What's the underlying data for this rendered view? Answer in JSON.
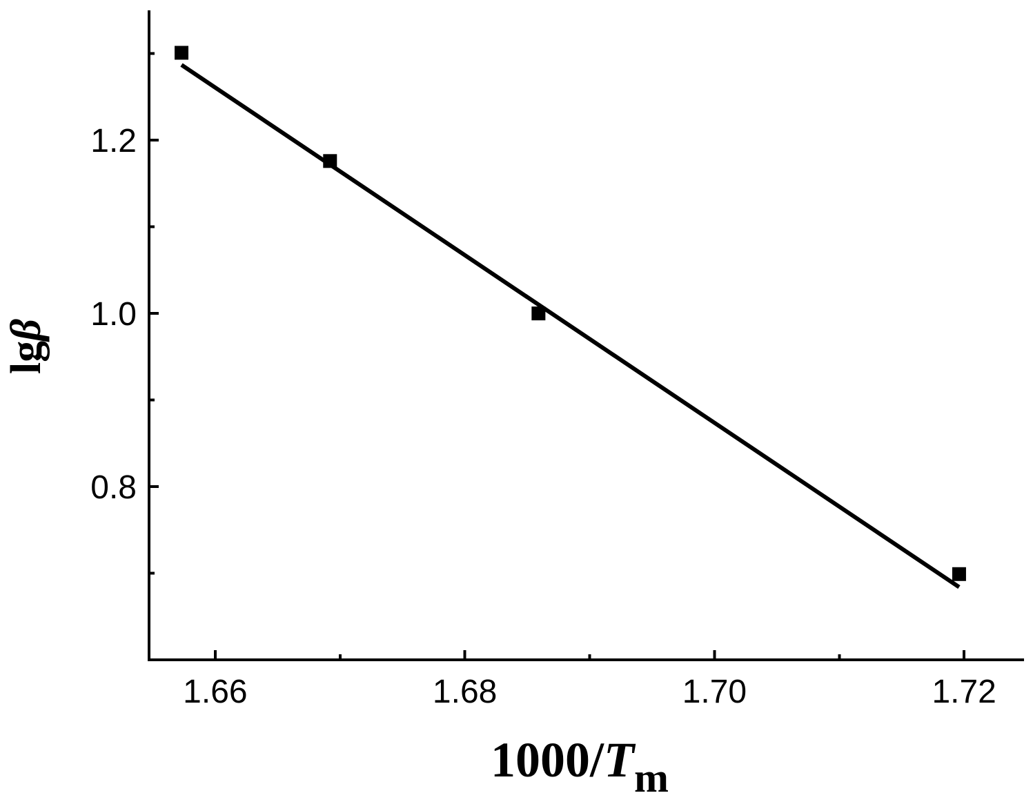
{
  "chart_data": {
    "type": "scatter",
    "xlabel": {
      "main": "1000/",
      "var": "T",
      "sub": "m"
    },
    "ylabel": {
      "main": "lg",
      "var": "β"
    },
    "xlim": [
      1.6547,
      1.7248
    ],
    "ylim": [
      0.6,
      1.35
    ],
    "x_ticks": [
      {
        "value": 1.66,
        "label": "1.66"
      },
      {
        "value": 1.68,
        "label": "1.68"
      },
      {
        "value": 1.7,
        "label": "1.70"
      },
      {
        "value": 1.72,
        "label": "1.72"
      }
    ],
    "x_minor_ticks": [
      1.67,
      1.69,
      1.71
    ],
    "y_ticks": [
      {
        "value": 0.8,
        "label": "0.8"
      },
      {
        "value": 1.0,
        "label": "1.0"
      },
      {
        "value": 1.2,
        "label": "1.2"
      }
    ],
    "y_minor_ticks": [
      0.7,
      0.9,
      1.1,
      1.3
    ],
    "series": [
      {
        "marker": "square",
        "color": "#000000",
        "points": [
          {
            "x": 1.6573,
            "y": 1.301
          },
          {
            "x": 1.6692,
            "y": 1.176
          },
          {
            "x": 1.6859,
            "y": 1.0
          },
          {
            "x": 1.7196,
            "y": 0.699
          }
        ]
      }
    ],
    "fit_line": {
      "color": "#000000",
      "x": [
        1.6573,
        1.7196
      ],
      "y": [
        1.287,
        0.684
      ]
    },
    "grid": false,
    "legend": "none"
  }
}
